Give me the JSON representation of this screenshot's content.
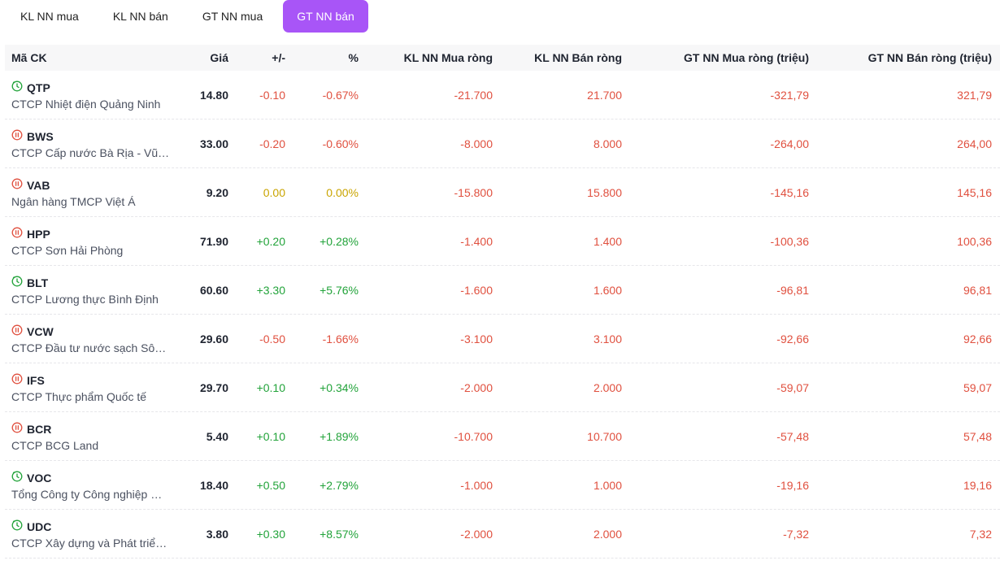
{
  "tabs": [
    {
      "label": "KL NN mua",
      "active": false
    },
    {
      "label": "KL NN bán",
      "active": false
    },
    {
      "label": "GT NN mua",
      "active": false
    },
    {
      "label": "GT NN bán",
      "active": true
    }
  ],
  "colors": {
    "accent": "#a855f7",
    "down": "#e0503f",
    "up": "#22a33a",
    "ref": "#c9a400"
  },
  "columns": {
    "symbol": "Mã CK",
    "price": "Giá",
    "change": "+/-",
    "percent": "%",
    "kl_buy": "KL NN Mua ròng",
    "kl_sell": "KL NN Bán ròng",
    "gt_buy": "GT NN Mua ròng (triệu)",
    "gt_sell": "GT NN Bán ròng (triệu)"
  },
  "rows": [
    {
      "symbol": "QTP",
      "icon": "clock-icon",
      "name": "CTCP Nhiệt điện Quảng Ninh",
      "price": "14.80",
      "change": "-0.10",
      "percent": "-0.67%",
      "trend": "down",
      "kl_buy": "-21.700",
      "kl_sell": "21.700",
      "gt_buy": "-321,79",
      "gt_sell": "321,79"
    },
    {
      "symbol": "BWS",
      "icon": "pause-icon",
      "name": "CTCP Cấp nước Bà Rịa - Vũng Tàu",
      "price": "33.00",
      "change": "-0.20",
      "percent": "-0.60%",
      "trend": "down",
      "kl_buy": "-8.000",
      "kl_sell": "8.000",
      "gt_buy": "-264,00",
      "gt_sell": "264,00"
    },
    {
      "symbol": "VAB",
      "icon": "pause-icon",
      "name": "Ngân hàng TMCP Việt Á",
      "price": "9.20",
      "change": "0.00",
      "percent": "0.00%",
      "trend": "ref",
      "kl_buy": "-15.800",
      "kl_sell": "15.800",
      "gt_buy": "-145,16",
      "gt_sell": "145,16"
    },
    {
      "symbol": "HPP",
      "icon": "pause-icon",
      "name": "CTCP Sơn Hải Phòng",
      "price": "71.90",
      "change": "+0.20",
      "percent": "+0.28%",
      "trend": "up",
      "kl_buy": "-1.400",
      "kl_sell": "1.400",
      "gt_buy": "-100,36",
      "gt_sell": "100,36"
    },
    {
      "symbol": "BLT",
      "icon": "clock-icon",
      "name": "CTCP Lương thực Bình Định",
      "price": "60.60",
      "change": "+3.30",
      "percent": "+5.76%",
      "trend": "up",
      "kl_buy": "-1.600",
      "kl_sell": "1.600",
      "gt_buy": "-96,81",
      "gt_sell": "96,81"
    },
    {
      "symbol": "VCW",
      "icon": "pause-icon",
      "name": "CTCP Đầu tư nước sạch Sông Đà",
      "price": "29.60",
      "change": "-0.50",
      "percent": "-1.66%",
      "trend": "down",
      "kl_buy": "-3.100",
      "kl_sell": "3.100",
      "gt_buy": "-92,66",
      "gt_sell": "92,66"
    },
    {
      "symbol": "IFS",
      "icon": "pause-icon",
      "name": "CTCP Thực phẩm Quốc tế",
      "price": "29.70",
      "change": "+0.10",
      "percent": "+0.34%",
      "trend": "up",
      "kl_buy": "-2.000",
      "kl_sell": "2.000",
      "gt_buy": "-59,07",
      "gt_sell": "59,07"
    },
    {
      "symbol": "BCR",
      "icon": "pause-icon",
      "name": "CTCP BCG Land",
      "price": "5.40",
      "change": "+0.10",
      "percent": "+1.89%",
      "trend": "up",
      "kl_buy": "-10.700",
      "kl_sell": "10.700",
      "gt_buy": "-57,48",
      "gt_sell": "57,48"
    },
    {
      "symbol": "VOC",
      "icon": "clock-icon",
      "name": "Tổng Công ty Công nghiệp Dầu thực vật Việt Nam",
      "price": "18.40",
      "change": "+0.50",
      "percent": "+2.79%",
      "trend": "up",
      "kl_buy": "-1.000",
      "kl_sell": "1.000",
      "gt_buy": "-19,16",
      "gt_sell": "19,16"
    },
    {
      "symbol": "UDC",
      "icon": "clock-icon",
      "name": "CTCP Xây dựng và Phát triển Đô thị",
      "price": "3.80",
      "change": "+0.30",
      "percent": "+8.57%",
      "trend": "up",
      "kl_buy": "-2.000",
      "kl_sell": "2.000",
      "gt_buy": "-7,32",
      "gt_sell": "7,32"
    }
  ]
}
